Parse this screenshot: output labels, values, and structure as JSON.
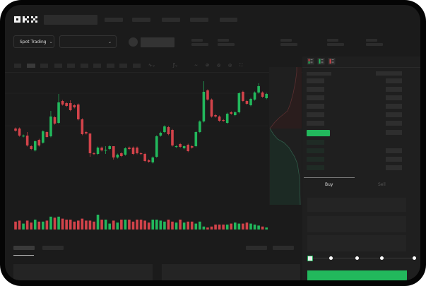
{
  "brand": {
    "logo": "OKX"
  },
  "toolbar": {
    "market_type": "Spot Trading"
  },
  "colors": {
    "up": "#22b85c",
    "down": "#d2434a",
    "background": "#1b1b1b",
    "panel": "#242424",
    "accent": "#22b85c"
  },
  "orderbook": {
    "view_icons": [
      "orderbook-both-icon",
      "orderbook-bids-icon",
      "orderbook-asks-icon"
    ]
  },
  "trade_form": {
    "tabs": [
      {
        "label": "Buy",
        "active": true
      },
      {
        "label": "Sell",
        "active": false
      }
    ],
    "slider_value_percent": 0,
    "slider_steps": [
      0,
      25,
      50,
      75,
      100
    ]
  },
  "chart_data": {
    "type": "candlestick",
    "candles": [
      [
        118,
        115
      ],
      [
        118,
        108
      ],
      [
        107,
        108
      ],
      [
        108,
        94,
        113
      ],
      [
        93,
        89
      ],
      [
        87,
        100
      ],
      [
        102,
        94
      ],
      [
        98,
        114
      ],
      [
        113,
        106
      ],
      [
        107,
        135,
        143
      ],
      [
        134,
        125
      ],
      [
        126,
        155,
        167
      ],
      [
        157,
        152
      ],
      [
        154,
        150
      ],
      [
        154,
        144,
        158
      ],
      [
        151,
        148
      ],
      [
        152,
        131
      ],
      [
        131,
        110
      ],
      [
        113,
        111
      ],
      [
        111,
        83,
        111,
        78
      ],
      [
        83,
        82
      ],
      [
        82,
        91
      ],
      [
        91,
        87
      ],
      [
        87,
        88,
        93,
        82
      ],
      [
        89,
        93
      ],
      [
        93,
        77,
        93,
        74
      ],
      [
        77,
        81
      ],
      [
        83,
        79
      ],
      [
        81,
        90
      ],
      [
        91,
        89
      ],
      [
        91,
        82
      ],
      [
        91,
        83
      ],
      [
        83,
        82
      ],
      [
        82,
        72
      ],
      [
        73,
        71
      ],
      [
        70,
        77
      ],
      [
        78,
        107
      ],
      [
        108,
        112
      ],
      [
        113,
        121
      ],
      [
        120,
        110
      ],
      [
        116,
        94
      ],
      [
        92,
        93
      ],
      [
        96,
        92
      ],
      [
        90,
        93
      ],
      [
        95,
        86
      ],
      [
        93,
        91
      ],
      [
        93,
        113
      ],
      [
        113,
        128
      ],
      [
        128,
        170,
        185
      ],
      [
        172,
        159
      ],
      [
        159,
        135
      ],
      [
        137,
        135
      ],
      [
        135,
        129
      ],
      [
        130,
        129
      ],
      [
        126,
        139
      ],
      [
        141,
        139
      ],
      [
        137,
        141
      ],
      [
        141,
        168
      ],
      [
        170,
        157
      ],
      [
        157,
        153
      ],
      [
        151,
        160
      ],
      [
        159,
        169
      ],
      [
        169,
        178,
        182
      ],
      [
        169,
        163
      ],
      [
        161,
        167
      ]
    ],
    "volumes": [
      8,
      9,
      6,
      9,
      7,
      10,
      8,
      8,
      9,
      13,
      12,
      13,
      11,
      10,
      10,
      8,
      9,
      11,
      9,
      9,
      8,
      15,
      10,
      10,
      6,
      9,
      7,
      10,
      10,
      10,
      8,
      10,
      10,
      9,
      7,
      10,
      10,
      9,
      8,
      10,
      8,
      7,
      10,
      7,
      8,
      8,
      6,
      8,
      3,
      2,
      3,
      5,
      5,
      5,
      5,
      6,
      7,
      6,
      6,
      7,
      6,
      5,
      4,
      3,
      2
    ]
  }
}
